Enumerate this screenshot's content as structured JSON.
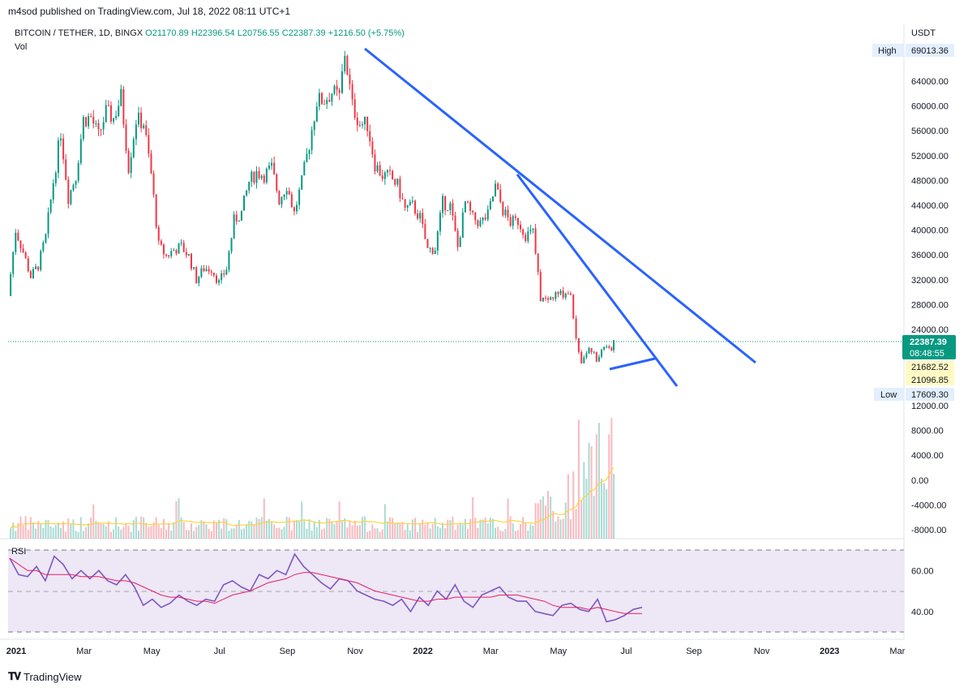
{
  "header": {
    "published": "m4sod published on TradingView.com, Jul 18, 2022 08:11 UTC+1",
    "symbol": "BITCOIN / TETHER, 1D, BINGX",
    "ohlc": "O21170.89 H22396.54 L20756.55 C22387.39 +1216.50 (+5.75%)",
    "vol_label": "Vol",
    "rsi_label": "RSI",
    "currency": "USDT"
  },
  "footer": {
    "logo_text": "TradingView"
  },
  "colors": {
    "up": "#089981",
    "down": "#f23645",
    "trendline": "#2962ff",
    "rsi": "#7e57c2",
    "rsi_ma": "#e91e63",
    "vol_ma": "#ffd33d",
    "label_bg": "#e3effd",
    "price_bg": "#089981"
  },
  "price_labels": {
    "high_label": "High",
    "high_value": "69013.36",
    "low_label": "Low",
    "low_value": "17609.30",
    "last_price": "22387.39",
    "countdown": "08:48:55",
    "level_1": "21682.52",
    "level_2": "21096.85"
  },
  "chart_data": [
    {
      "type": "candlestick",
      "title": "BITCOIN / TETHER, 1D, BINGX",
      "y_ticks": [
        "64000.00",
        "60000.00",
        "56000.00",
        "52000.00",
        "48000.00",
        "44000.00",
        "40000.00",
        "36000.00",
        "32000.00",
        "28000.00",
        "24000.00"
      ],
      "ylim": [
        20000,
        69000
      ],
      "x_ticks": [
        "2021",
        "Mar",
        "May",
        "Jul",
        "Sep",
        "Nov",
        "2022",
        "Mar",
        "May",
        "Jul",
        "Sep",
        "Nov",
        "2023",
        "Mar"
      ],
      "x_start": "2021-01-01",
      "x_end": "2023-03-31",
      "series": [
        {
          "name": "weekly_close",
          "points": [
            [
              "2021-01-01",
              29400
            ],
            [
              "2021-01-08",
              40000
            ],
            [
              "2021-01-15",
              36500
            ],
            [
              "2021-01-22",
              32500
            ],
            [
              "2021-01-29",
              34300
            ],
            [
              "2021-02-05",
              38900
            ],
            [
              "2021-02-12",
              47800
            ],
            [
              "2021-02-19",
              55800
            ],
            [
              "2021-02-26",
              45300
            ],
            [
              "2021-03-05",
              48800
            ],
            [
              "2021-03-12",
              57800
            ],
            [
              "2021-03-19",
              58200
            ],
            [
              "2021-03-26",
              55100
            ],
            [
              "2021-04-02",
              59000
            ],
            [
              "2021-04-09",
              58000
            ],
            [
              "2021-04-16",
              61500
            ],
            [
              "2021-04-23",
              50200
            ],
            [
              "2021-04-30",
              57800
            ],
            [
              "2021-05-07",
              57300
            ],
            [
              "2021-05-14",
              49000
            ],
            [
              "2021-05-21",
              37500
            ],
            [
              "2021-05-28",
              35800
            ],
            [
              "2021-06-04",
              36800
            ],
            [
              "2021-06-11",
              37300
            ],
            [
              "2021-06-18",
              35800
            ],
            [
              "2021-06-25",
              32000
            ],
            [
              "2021-07-02",
              33800
            ],
            [
              "2021-07-09",
              33800
            ],
            [
              "2021-07-16",
              31500
            ],
            [
              "2021-07-23",
              33800
            ],
            [
              "2021-07-30",
              41500
            ],
            [
              "2021-08-06",
              42800
            ],
            [
              "2021-08-13",
              47800
            ],
            [
              "2021-08-20",
              49300
            ],
            [
              "2021-08-27",
              48900
            ],
            [
              "2021-09-03",
              50000
            ],
            [
              "2021-09-10",
              44900
            ],
            [
              "2021-09-17",
              47300
            ],
            [
              "2021-09-24",
              42700
            ],
            [
              "2021-10-01",
              47700
            ],
            [
              "2021-10-08",
              53900
            ],
            [
              "2021-10-15",
              60800
            ],
            [
              "2021-10-22",
              61000
            ],
            [
              "2021-10-29",
              62200
            ],
            [
              "2021-11-05",
              61400
            ],
            [
              "2021-11-10",
              68600
            ],
            [
              "2021-11-17",
              60000
            ],
            [
              "2021-11-24",
              57100
            ],
            [
              "2021-12-01",
              57000
            ],
            [
              "2021-12-08",
              50600
            ],
            [
              "2021-12-15",
              48800
            ],
            [
              "2021-12-22",
              48600
            ],
            [
              "2021-12-29",
              47200
            ],
            [
              "2022-01-05",
              43400
            ],
            [
              "2022-01-12",
              43900
            ],
            [
              "2022-01-19",
              42000
            ],
            [
              "2022-01-26",
              36800
            ],
            [
              "2022-02-02",
              37000
            ],
            [
              "2022-02-09",
              44400
            ],
            [
              "2022-02-16",
              43900
            ],
            [
              "2022-02-23",
              37200
            ],
            [
              "2022-03-02",
              44400
            ],
            [
              "2022-03-09",
              41900
            ],
            [
              "2022-03-16",
              41100
            ],
            [
              "2022-03-23",
              42400
            ],
            [
              "2022-03-30",
              47000
            ],
            [
              "2022-04-06",
              43200
            ],
            [
              "2022-04-13",
              41200
            ],
            [
              "2022-04-20",
              41500
            ],
            [
              "2022-04-27",
              39200
            ],
            [
              "2022-05-04",
              39700
            ],
            [
              "2022-05-11",
              29000
            ],
            [
              "2022-05-18",
              28700
            ],
            [
              "2022-05-25",
              29500
            ],
            [
              "2022-06-01",
              29800
            ],
            [
              "2022-06-08",
              30100
            ],
            [
              "2022-06-13",
              22300
            ],
            [
              "2022-06-18",
              19000
            ],
            [
              "2022-06-25",
              21200
            ],
            [
              "2022-07-02",
              19300
            ],
            [
              "2022-07-09",
              21600
            ],
            [
              "2022-07-16",
              20800
            ],
            [
              "2022-07-18",
              22387
            ]
          ]
        }
      ]
    },
    {
      "type": "bar",
      "title": "Vol",
      "y_ticks": [
        "12000.00",
        "8000.00",
        "4000.00",
        "0.00",
        "-4000.00",
        "-8000.00"
      ]
    },
    {
      "type": "line",
      "title": "RSI",
      "y_ticks": [
        "60.00",
        "40.00"
      ],
      "ylim": [
        28,
        74
      ],
      "series": [
        {
          "name": "RSI",
          "values": [
            66,
            58,
            57,
            62,
            55,
            67,
            63,
            56,
            60,
            56,
            60,
            55,
            53,
            58,
            52,
            43,
            46,
            42,
            44,
            48,
            45,
            43,
            46,
            45,
            53,
            55,
            52,
            50,
            58,
            56,
            60,
            58,
            68,
            62,
            58,
            54,
            51,
            56,
            55,
            50,
            48,
            46,
            45,
            43,
            46,
            40,
            47,
            43,
            50,
            46,
            53,
            45,
            42,
            48,
            50,
            52,
            47,
            45,
            45,
            40,
            39,
            38,
            43,
            44,
            41,
            40,
            46,
            35,
            36,
            38,
            41,
            42
          ]
        },
        {
          "name": "RSI MA",
          "values": [
            66,
            63,
            60,
            60,
            58,
            58,
            58,
            58,
            57,
            57,
            57,
            56,
            55,
            55,
            54,
            52,
            50,
            48,
            47,
            47,
            46,
            45,
            45,
            44,
            46,
            48,
            49,
            50,
            52,
            54,
            55,
            56,
            58,
            59,
            59,
            58,
            57,
            56,
            55,
            54,
            52,
            50,
            49,
            48,
            47,
            46,
            45,
            45,
            46,
            46,
            47,
            47,
            47,
            47,
            47,
            48,
            48,
            48,
            47,
            46,
            45,
            43,
            42,
            42,
            42,
            41,
            42,
            41,
            40,
            39,
            39,
            39
          ]
        }
      ]
    }
  ]
}
